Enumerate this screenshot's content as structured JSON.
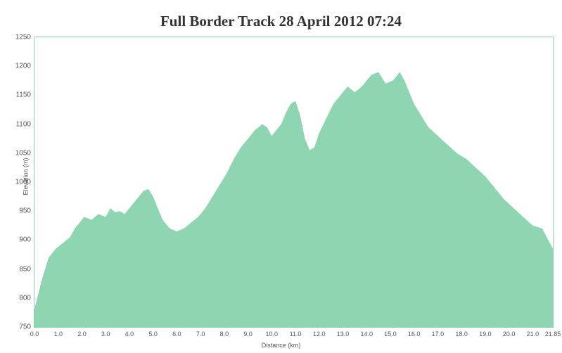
{
  "chart": {
    "type": "area",
    "title": "Full Border Track 28 April 2012 07:24",
    "title_fontsize": 21,
    "title_color": "#333333",
    "background_color": "#ffffff",
    "border_color": "#8ad5b0",
    "fill_color": "#8ed5b1",
    "xlabel": "Distance  (km)",
    "ylabel": "Elevation (m)",
    "label_fontsize": 9,
    "tick_fontsize": 10,
    "tick_color": "#555555",
    "xlim": [
      0.0,
      21.85
    ],
    "ylim": [
      750,
      1250
    ],
    "ytick_step": 50,
    "xticks": [
      0.0,
      1.0,
      2.0,
      3.0,
      4.0,
      5.0,
      6.0,
      7.0,
      8.0,
      9.0,
      10.0,
      11.0,
      12.0,
      13.0,
      14.0,
      15.0,
      16.0,
      17.0,
      18.0,
      19.0,
      20.0,
      21.0,
      21.85
    ],
    "yticks": [
      750,
      800,
      850,
      900,
      950,
      1000,
      1050,
      1100,
      1150,
      1200,
      1250
    ],
    "data": {
      "x": [
        0.0,
        0.3,
        0.6,
        0.9,
        1.2,
        1.5,
        1.7,
        1.9,
        2.1,
        2.4,
        2.7,
        3.0,
        3.2,
        3.4,
        3.6,
        3.8,
        4.0,
        4.2,
        4.4,
        4.6,
        4.8,
        5.0,
        5.2,
        5.4,
        5.7,
        6.0,
        6.3,
        6.6,
        6.9,
        7.2,
        7.5,
        7.8,
        8.1,
        8.4,
        8.7,
        9.0,
        9.3,
        9.6,
        9.8,
        10.0,
        10.2,
        10.4,
        10.6,
        10.8,
        11.0,
        11.2,
        11.4,
        11.6,
        11.8,
        12.0,
        12.3,
        12.6,
        12.9,
        13.2,
        13.5,
        13.8,
        14.0,
        14.2,
        14.5,
        14.8,
        15.1,
        15.4,
        15.6,
        15.8,
        16.0,
        16.3,
        16.6,
        17.0,
        17.4,
        17.8,
        18.2,
        18.6,
        19.0,
        19.4,
        19.8,
        20.2,
        20.6,
        21.0,
        21.4,
        21.85
      ],
      "y": [
        780,
        830,
        870,
        885,
        895,
        905,
        920,
        930,
        940,
        935,
        945,
        940,
        955,
        948,
        950,
        945,
        955,
        965,
        975,
        985,
        988,
        975,
        955,
        935,
        920,
        915,
        920,
        930,
        940,
        955,
        975,
        995,
        1015,
        1040,
        1060,
        1075,
        1090,
        1100,
        1095,
        1080,
        1090,
        1100,
        1120,
        1135,
        1140,
        1115,
        1075,
        1055,
        1060,
        1085,
        1110,
        1135,
        1150,
        1165,
        1155,
        1165,
        1175,
        1185,
        1190,
        1170,
        1175,
        1190,
        1175,
        1155,
        1135,
        1115,
        1095,
        1080,
        1065,
        1050,
        1040,
        1025,
        1010,
        990,
        970,
        955,
        940,
        925,
        920,
        885
      ]
    }
  }
}
